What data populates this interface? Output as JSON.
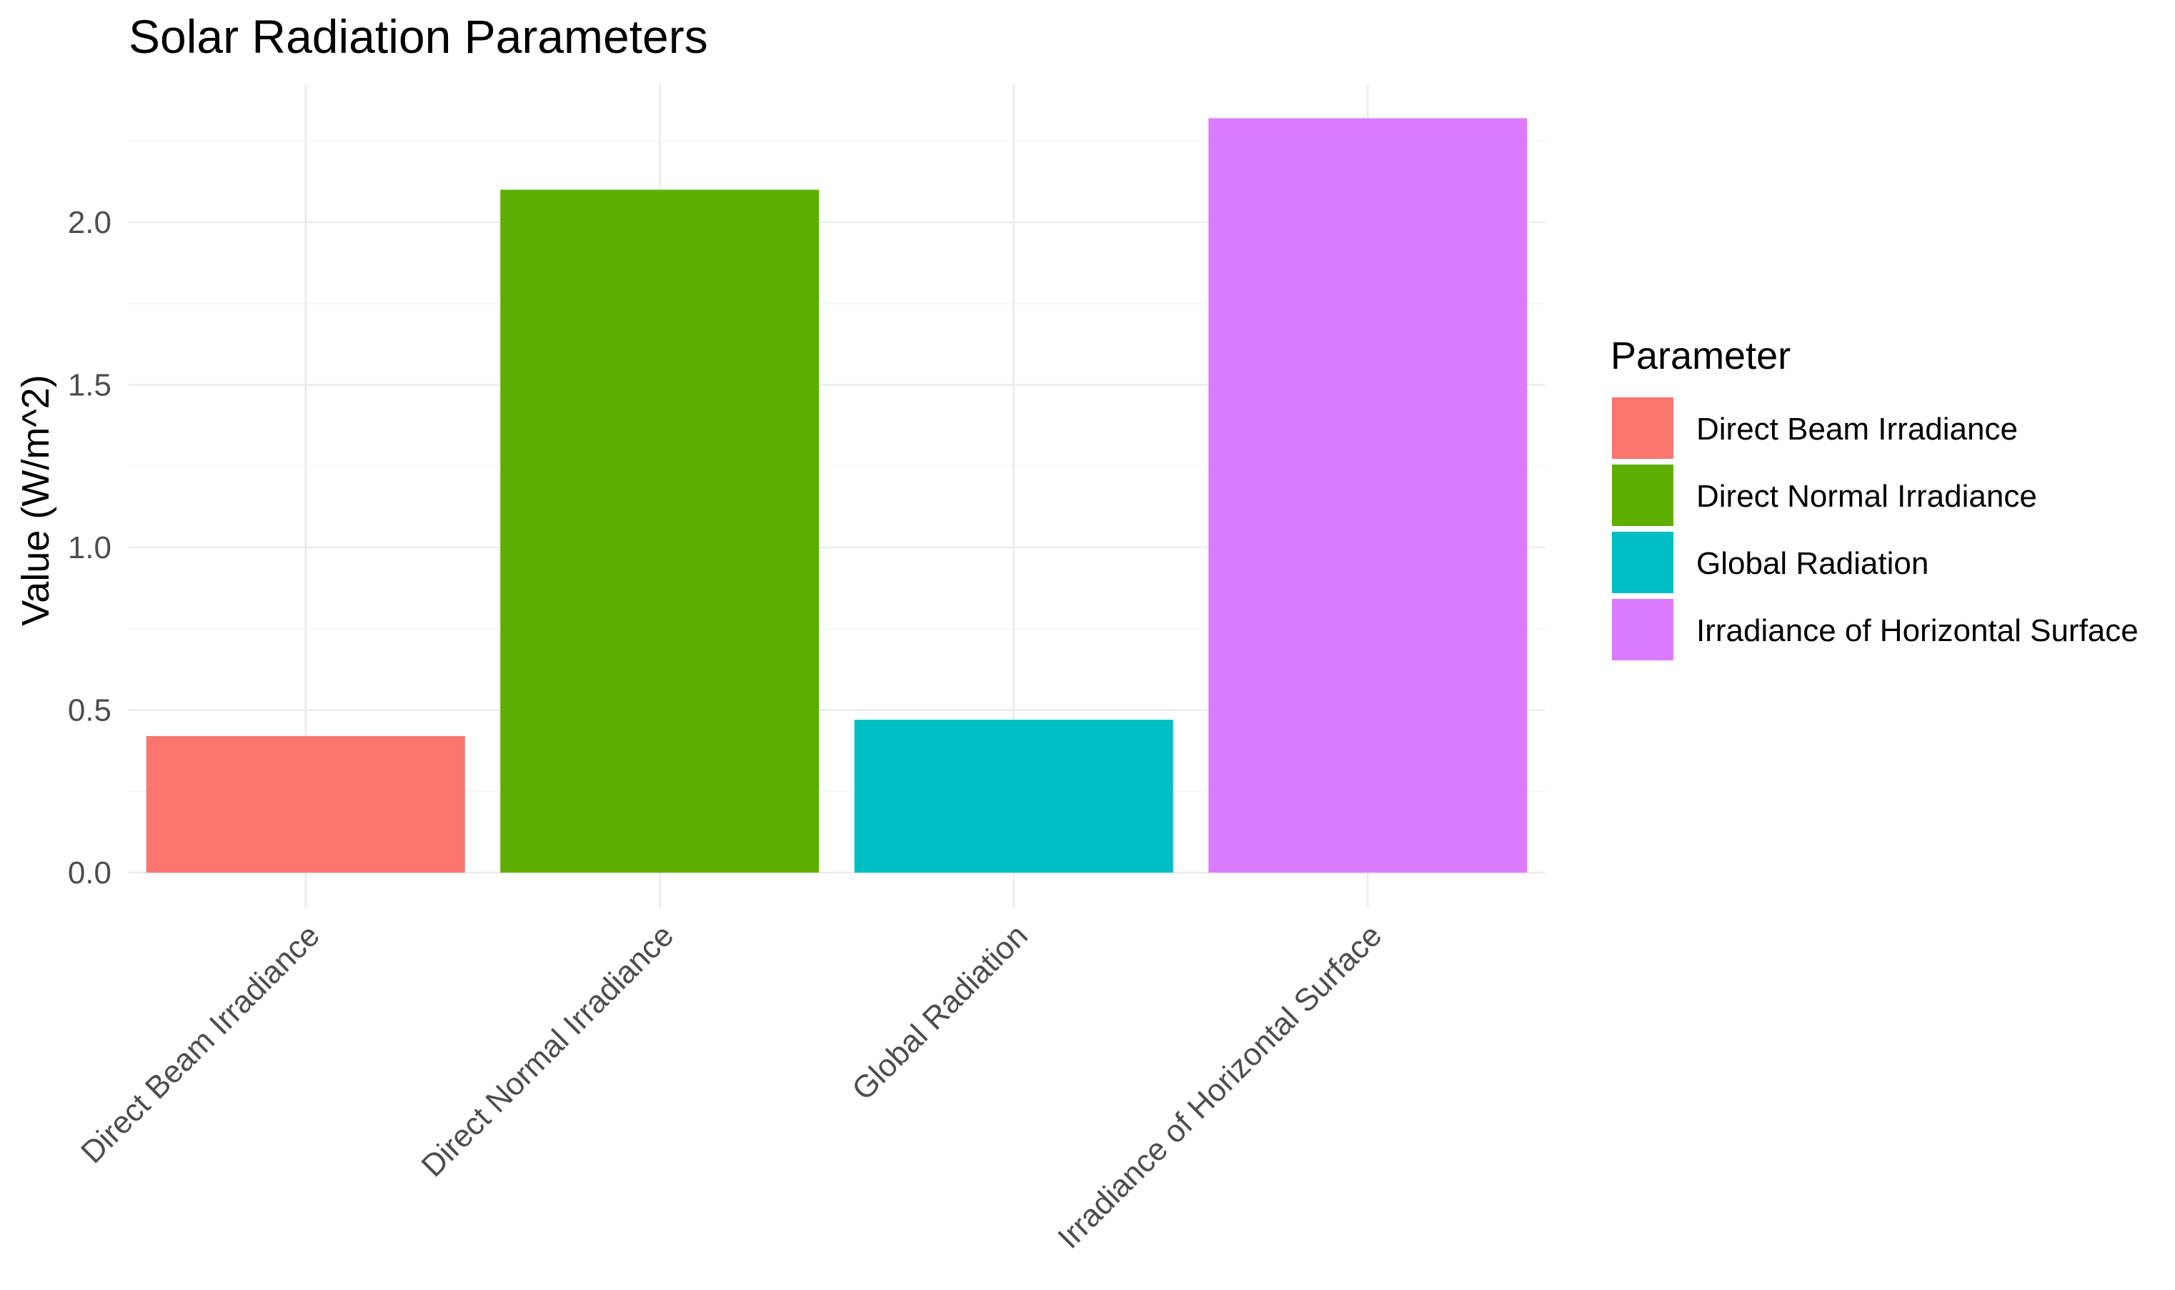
{
  "chart_data": {
    "type": "bar",
    "title": "Solar Radiation Parameters",
    "xlabel": "",
    "ylabel": "Value (W/m^2)",
    "ylim": [
      0,
      2.4
    ],
    "y_ticks": [
      0.0,
      0.5,
      1.0,
      1.5,
      2.0
    ],
    "y_tick_labels": [
      "0.0",
      "0.5",
      "1.0",
      "1.5",
      "2.0"
    ],
    "grid": true,
    "categories": [
      "Direct Beam Irradiance",
      "Direct Normal Irradiance",
      "Global Radiation",
      "Irradiance of Horizontal Surface"
    ],
    "values": [
      0.42,
      2.1,
      0.47,
      2.32
    ],
    "colors": [
      "#F8766D",
      "#5EAE00",
      "#00BFC4",
      "#DC7BFF"
    ],
    "legend": {
      "title": "Parameter",
      "position": "right",
      "entries": [
        "Direct Beam Irradiance",
        "Direct Normal Irradiance",
        "Global Radiation",
        "Irradiance of Horizontal Surface"
      ]
    }
  }
}
